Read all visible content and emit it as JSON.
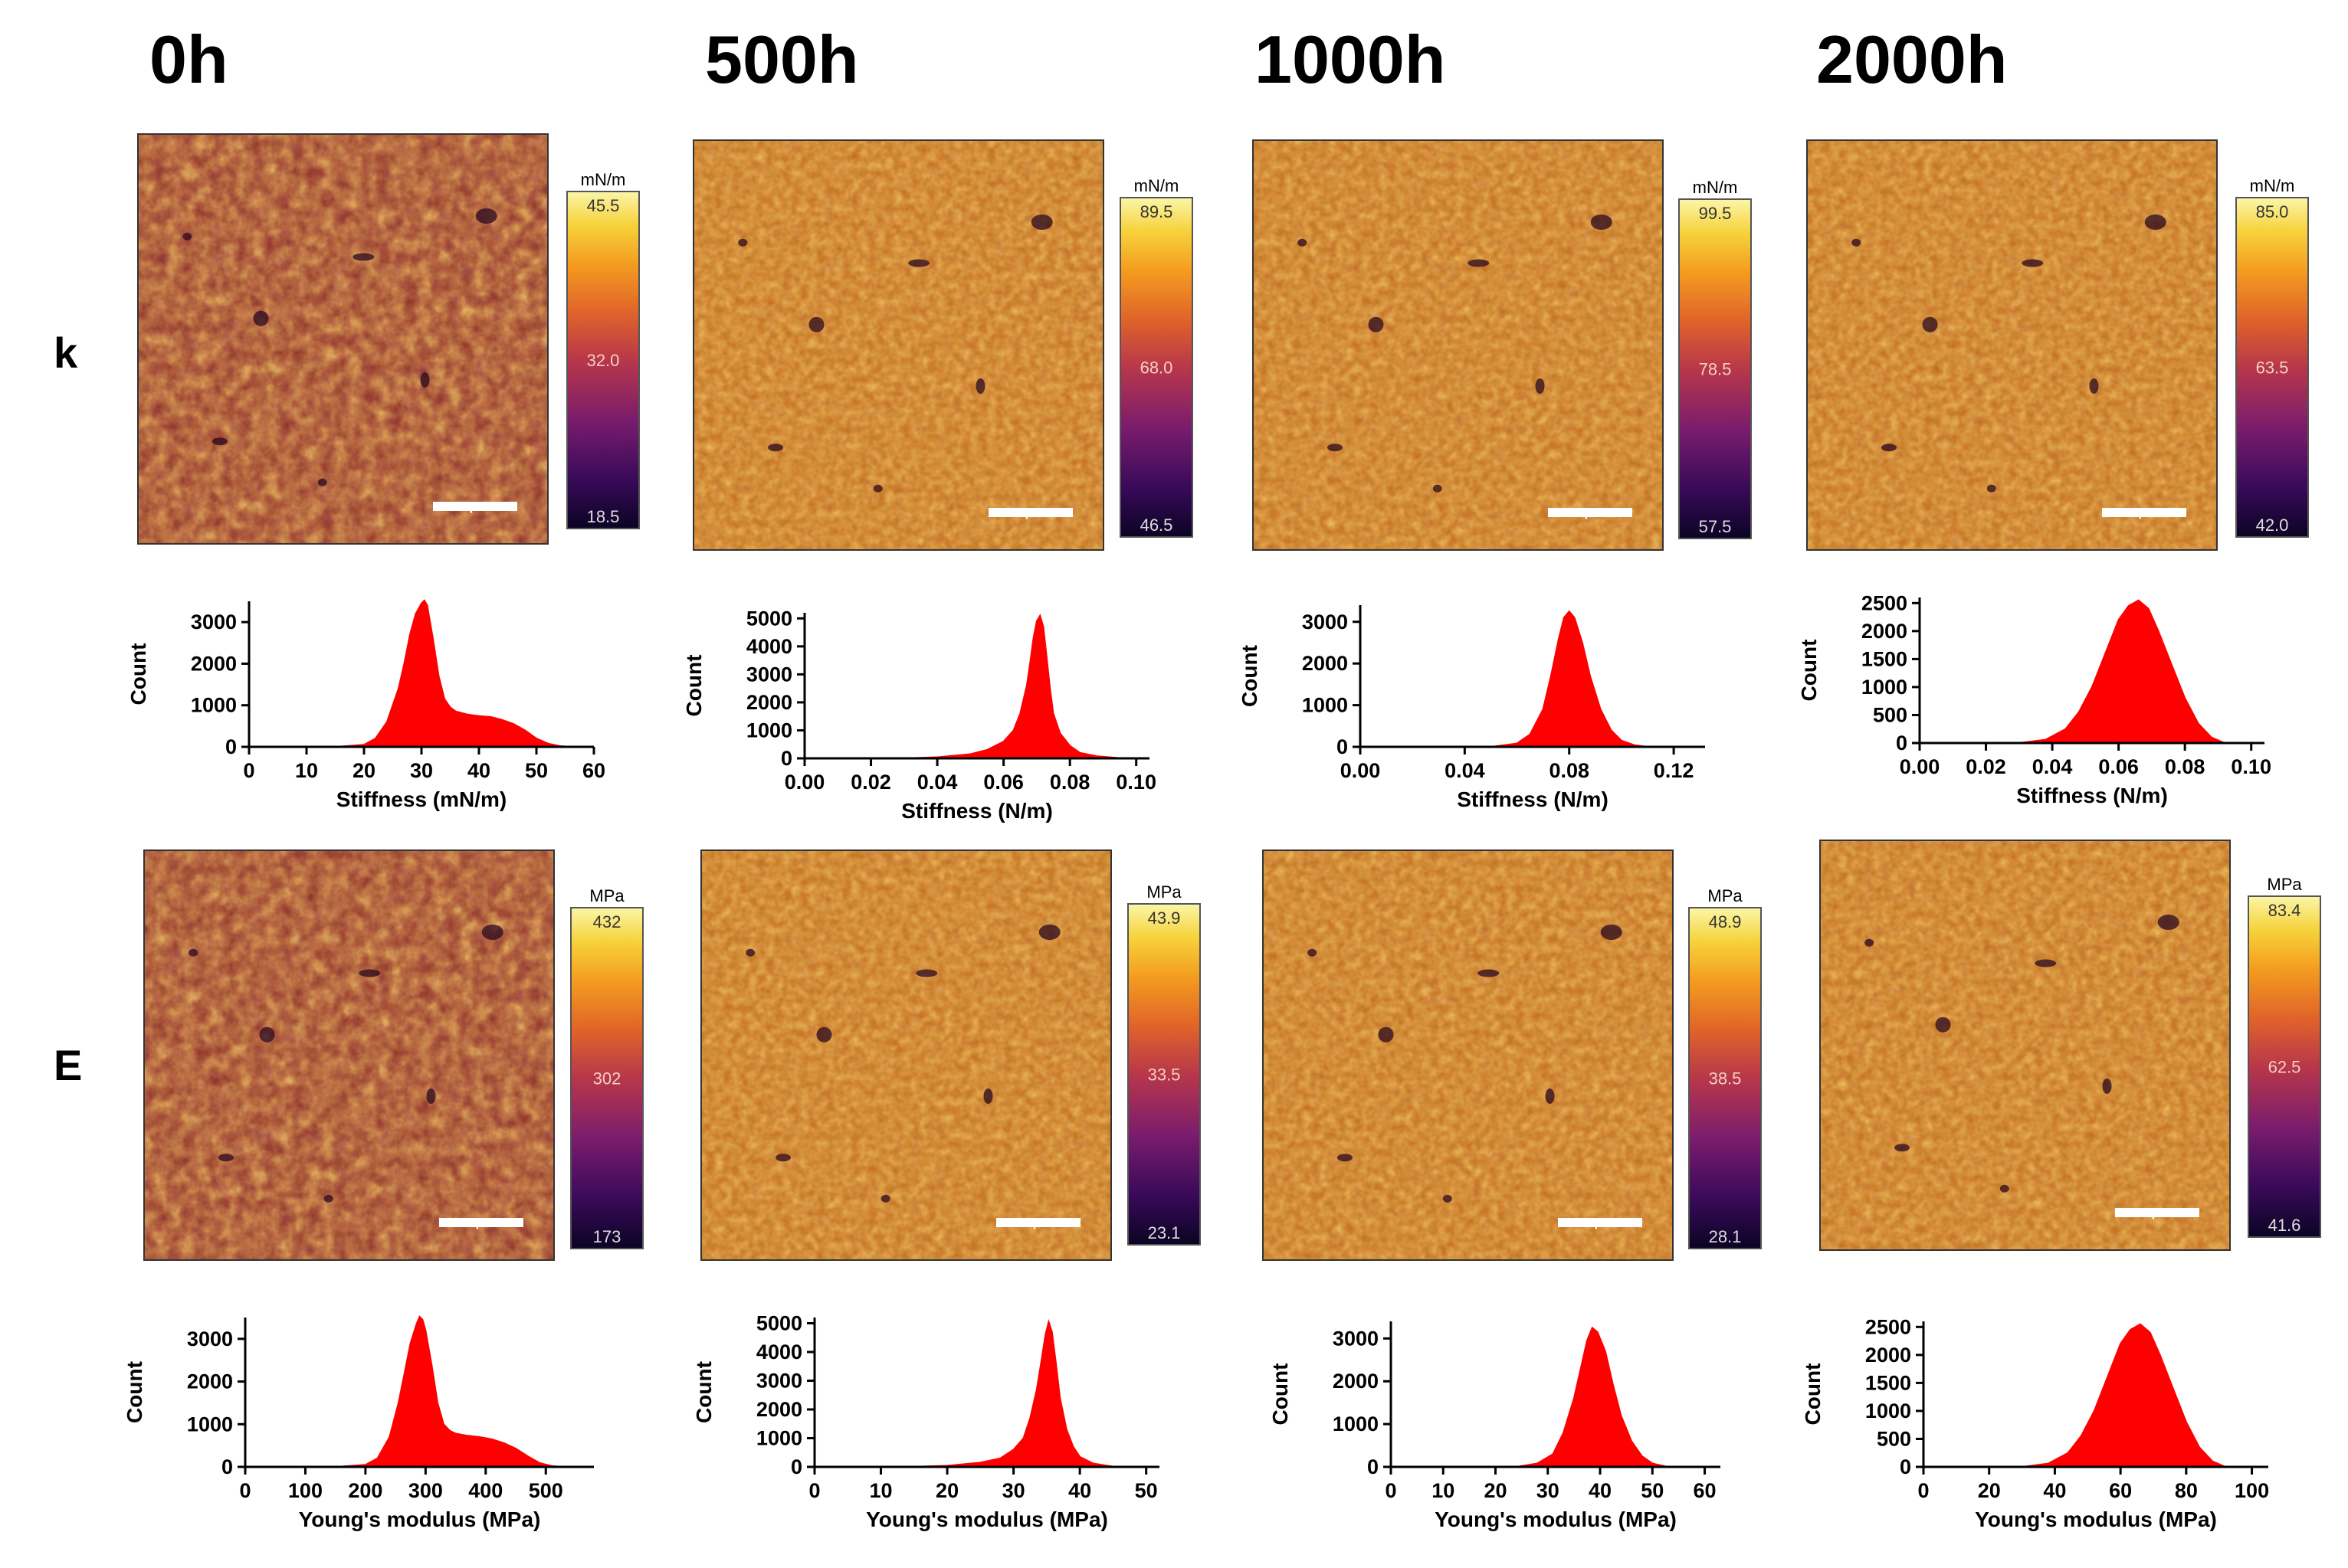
{
  "figure": {
    "row_labels": [
      "k",
      "E"
    ],
    "columns": [
      "0h",
      "500h",
      "1000h",
      "2000h"
    ]
  },
  "colors": {
    "histogram_fill": "#ff0000",
    "colormap": [
      "#0b0424",
      "#3a0a5a",
      "#7a1c6d",
      "#b8374a",
      "#e0632a",
      "#f39a1f",
      "#f6d23a",
      "#fbf6a8"
    ]
  },
  "chart_data": [
    {
      "id": "map-k-0h",
      "type": "heatmap",
      "row": "k",
      "column": "0h",
      "colorbar": {
        "unit": "mN/m",
        "max": "45.5",
        "mid": "32.0",
        "min": "18.5"
      },
      "scale_bar": "1µm"
    },
    {
      "id": "map-k-500h",
      "type": "heatmap",
      "row": "k",
      "column": "500h",
      "colorbar": {
        "unit": "mN/m",
        "max": "89.5",
        "mid": "68.0",
        "min": "46.5"
      },
      "scale_bar": "1µm"
    },
    {
      "id": "map-k-1000h",
      "type": "heatmap",
      "row": "k",
      "column": "1000h",
      "colorbar": {
        "unit": "mN/m",
        "max": "99.5",
        "mid": "78.5",
        "min": "57.5"
      },
      "scale_bar": "1µm"
    },
    {
      "id": "map-k-2000h",
      "type": "heatmap",
      "row": "k",
      "column": "2000h",
      "colorbar": {
        "unit": "mN/m",
        "max": "85.0",
        "mid": "63.5",
        "min": "42.0"
      },
      "scale_bar": "1µm"
    },
    {
      "id": "map-E-0h",
      "type": "heatmap",
      "row": "E",
      "column": "0h",
      "colorbar": {
        "unit": "MPa",
        "max": "432",
        "mid": "302",
        "min": "173"
      },
      "scale_bar": "1µm"
    },
    {
      "id": "map-E-500h",
      "type": "heatmap",
      "row": "E",
      "column": "500h",
      "colorbar": {
        "unit": "MPa",
        "max": "43.9",
        "mid": "33.5",
        "min": "23.1"
      },
      "scale_bar": "1µm"
    },
    {
      "id": "map-E-1000h",
      "type": "heatmap",
      "row": "E",
      "column": "1000h",
      "colorbar": {
        "unit": "MPa",
        "max": "48.9",
        "mid": "38.5",
        "min": "28.1"
      },
      "scale_bar": "1µm"
    },
    {
      "id": "map-E-2000h",
      "type": "heatmap",
      "row": "E",
      "column": "2000h",
      "colorbar": {
        "unit": "MPa",
        "max": "83.4",
        "mid": "62.5",
        "min": "41.6"
      },
      "scale_bar": "1µm"
    },
    {
      "id": "hist-k-0h",
      "type": "area",
      "row": "k",
      "column": "0h",
      "xlabel": "Stiffness (mN/m)",
      "ylabel": "Count",
      "xlim": [
        0,
        60
      ],
      "ylim": [
        0,
        3500
      ],
      "xticks": [
        0,
        10,
        20,
        30,
        40,
        50,
        60
      ],
      "xtick_labels": [
        "0",
        "10",
        "20",
        "30",
        "40",
        "50",
        "60"
      ],
      "yticks": [
        0,
        1000,
        2000,
        3000
      ],
      "ytick_labels": [
        "0",
        "1000",
        "2000",
        "3000"
      ],
      "x": [
        0,
        15,
        20,
        22,
        24,
        26,
        27,
        28,
        29,
        30,
        30.5,
        31,
        32,
        33,
        34,
        35,
        36,
        38,
        40,
        42,
        44,
        46,
        48,
        50,
        52,
        54,
        56,
        60
      ],
      "y": [
        0,
        0,
        50,
        200,
        600,
        1400,
        2000,
        2700,
        3200,
        3450,
        3520,
        3400,
        2600,
        1700,
        1150,
        950,
        850,
        780,
        740,
        720,
        650,
        550,
        400,
        200,
        80,
        20,
        0,
        0
      ]
    },
    {
      "id": "hist-k-500h",
      "type": "area",
      "row": "k",
      "column": "500h",
      "xlabel": "Stiffness (N/m)",
      "ylabel": "Count",
      "xlim": [
        0,
        0.104
      ],
      "ylim": [
        0,
        5200
      ],
      "xticks": [
        0,
        0.02,
        0.04,
        0.06,
        0.08,
        0.1
      ],
      "xtick_labels": [
        "0.00",
        "0.02",
        "0.04",
        "0.06",
        "0.08",
        "0.10"
      ],
      "yticks": [
        0,
        1000,
        2000,
        3000,
        4000,
        5000
      ],
      "ytick_labels": [
        "0",
        "1000",
        "2000",
        "3000",
        "4000",
        "5000"
      ],
      "x": [
        0,
        0.03,
        0.04,
        0.05,
        0.055,
        0.06,
        0.063,
        0.065,
        0.067,
        0.068,
        0.069,
        0.07,
        0.071,
        0.072,
        0.073,
        0.074,
        0.075,
        0.077,
        0.08,
        0.083,
        0.088,
        0.095,
        0.104
      ],
      "y": [
        0,
        0,
        40,
        150,
        300,
        600,
        1000,
        1600,
        2600,
        3400,
        4300,
        4900,
        5100,
        4700,
        3600,
        2500,
        1600,
        900,
        450,
        200,
        80,
        10,
        0
      ]
    },
    {
      "id": "hist-k-1000h",
      "type": "area",
      "row": "k",
      "column": "1000h",
      "xlabel": "Stiffness (N/m)",
      "ylabel": "Count",
      "xlim": [
        0,
        0.132
      ],
      "ylim": [
        0,
        3400
      ],
      "xticks": [
        0,
        0.04,
        0.08,
        0.12
      ],
      "xtick_labels": [
        "0.00",
        "0.04",
        "0.08",
        "0.12"
      ],
      "yticks": [
        0,
        1000,
        2000,
        3000
      ],
      "ytick_labels": [
        "0",
        "1000",
        "2000",
        "3000"
      ],
      "x": [
        0,
        0.05,
        0.06,
        0.065,
        0.07,
        0.073,
        0.076,
        0.078,
        0.08,
        0.082,
        0.085,
        0.088,
        0.092,
        0.096,
        0.1,
        0.105,
        0.11,
        0.132
      ],
      "y": [
        0,
        0,
        80,
        300,
        900,
        1700,
        2600,
        3100,
        3250,
        3100,
        2500,
        1700,
        900,
        400,
        150,
        40,
        0,
        0
      ]
    },
    {
      "id": "hist-k-2000h",
      "type": "area",
      "row": "k",
      "column": "2000h",
      "xlabel": "Stiffness (N/m)",
      "ylabel": "Count",
      "xlim": [
        0,
        0.104
      ],
      "ylim": [
        0,
        2600
      ],
      "xticks": [
        0,
        0.02,
        0.04,
        0.06,
        0.08,
        0.1
      ],
      "xtick_labels": [
        "0.00",
        "0.02",
        "0.04",
        "0.06",
        "0.08",
        "0.10"
      ],
      "yticks": [
        0,
        500,
        1000,
        1500,
        2000,
        2500
      ],
      "ytick_labels": [
        "0",
        "500",
        "1000",
        "1500",
        "2000",
        "2500"
      ],
      "x": [
        0,
        0.03,
        0.038,
        0.044,
        0.048,
        0.052,
        0.056,
        0.06,
        0.063,
        0.066,
        0.069,
        0.072,
        0.076,
        0.08,
        0.084,
        0.088,
        0.092,
        0.104
      ],
      "y": [
        0,
        0,
        60,
        250,
        550,
        1000,
        1600,
        2200,
        2450,
        2550,
        2400,
        2000,
        1400,
        800,
        350,
        100,
        0,
        0
      ]
    },
    {
      "id": "hist-E-0h",
      "type": "area",
      "row": "E",
      "column": "0h",
      "xlabel": "Young's modulus (MPa)",
      "ylabel": "Count",
      "xlim": [
        0,
        580
      ],
      "ylim": [
        0,
        3500
      ],
      "xticks": [
        0,
        100,
        200,
        300,
        400,
        500
      ],
      "xtick_labels": [
        "0",
        "100",
        "200",
        "300",
        "400",
        "500"
      ],
      "yticks": [
        0,
        1000,
        2000,
        3000
      ],
      "ytick_labels": [
        "0",
        "1000",
        "2000",
        "3000"
      ],
      "x": [
        0,
        150,
        200,
        220,
        240,
        255,
        265,
        275,
        285,
        290,
        295,
        300,
        310,
        320,
        330,
        340,
        350,
        370,
        390,
        410,
        430,
        450,
        470,
        490,
        510,
        530,
        580
      ],
      "y": [
        0,
        0,
        50,
        200,
        700,
        1500,
        2200,
        2900,
        3350,
        3520,
        3450,
        3200,
        2400,
        1500,
        1000,
        850,
        780,
        730,
        700,
        650,
        560,
        430,
        250,
        90,
        20,
        0,
        0
      ]
    },
    {
      "id": "hist-E-500h",
      "type": "area",
      "row": "E",
      "column": "500h",
      "xlabel": "Young's modulus (MPa)",
      "ylabel": "Count",
      "xlim": [
        0,
        52
      ],
      "ylim": [
        0,
        5200
      ],
      "xticks": [
        0,
        10,
        20,
        30,
        40,
        50
      ],
      "xtick_labels": [
        "0",
        "10",
        "20",
        "30",
        "40",
        "50"
      ],
      "yticks": [
        0,
        1000,
        2000,
        3000,
        4000,
        5000
      ],
      "ytick_labels": [
        "0",
        "1000",
        "2000",
        "3000",
        "4000",
        "5000"
      ],
      "x": [
        0,
        14,
        20,
        25,
        28,
        30,
        31.5,
        32.5,
        33.5,
        34.2,
        34.8,
        35.3,
        35.8,
        36.4,
        37,
        38,
        39,
        40,
        42,
        45,
        52
      ],
      "y": [
        0,
        0,
        40,
        150,
        300,
        600,
        1000,
        1700,
        2700,
        3700,
        4600,
        5050,
        4700,
        3600,
        2400,
        1300,
        700,
        350,
        120,
        10,
        0
      ]
    },
    {
      "id": "hist-E-1000h",
      "type": "area",
      "row": "E",
      "column": "1000h",
      "xlabel": "Young's modulus (MPa)",
      "ylabel": "Count",
      "xlim": [
        0,
        63
      ],
      "ylim": [
        0,
        3400
      ],
      "xticks": [
        0,
        10,
        20,
        30,
        40,
        50,
        60
      ],
      "xtick_labels": [
        "0",
        "10",
        "20",
        "30",
        "40",
        "50",
        "60"
      ],
      "yticks": [
        0,
        1000,
        2000,
        3000
      ],
      "ytick_labels": [
        "0",
        "1000",
        "2000",
        "3000"
      ],
      "x": [
        0,
        24,
        28,
        31,
        33,
        35,
        36.5,
        37.5,
        38.5,
        39.5,
        41,
        42.5,
        44,
        46,
        48,
        50,
        53,
        63
      ],
      "y": [
        0,
        0,
        80,
        300,
        800,
        1600,
        2400,
        2950,
        3250,
        3150,
        2700,
        1900,
        1200,
        600,
        250,
        80,
        0,
        0
      ]
    },
    {
      "id": "hist-E-2000h",
      "type": "area",
      "row": "E",
      "column": "2000h",
      "xlabel": "Young's modulus (MPa)",
      "ylabel": "Count",
      "xlim": [
        0,
        105
      ],
      "ylim": [
        0,
        2600
      ],
      "xticks": [
        0,
        20,
        40,
        60,
        80,
        100
      ],
      "xtick_labels": [
        "0",
        "20",
        "40",
        "60",
        "80",
        "100"
      ],
      "yticks": [
        0,
        500,
        1000,
        1500,
        2000,
        2500
      ],
      "ytick_labels": [
        "0",
        "500",
        "1000",
        "1500",
        "2000",
        "2500"
      ],
      "x": [
        0,
        30,
        38,
        44,
        48,
        52,
        56,
        60,
        63,
        66,
        69,
        72,
        76,
        80,
        84,
        88,
        92,
        105
      ],
      "y": [
        0,
        0,
        60,
        250,
        550,
        1000,
        1600,
        2200,
        2450,
        2550,
        2400,
        2000,
        1400,
        800,
        350,
        100,
        0,
        0
      ]
    }
  ]
}
